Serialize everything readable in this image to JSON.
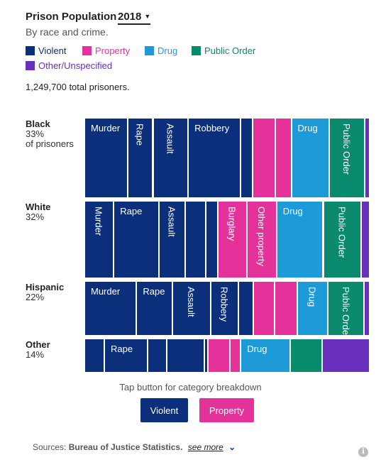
{
  "header": {
    "title": "Prison Population",
    "year": "2018",
    "subtitle": "By race and crime."
  },
  "legend": [
    {
      "label": "Violent",
      "color": "#0c2f7b"
    },
    {
      "label": "Property",
      "color": "#e5329b"
    },
    {
      "label": "Drug",
      "color": "#1f9ad9"
    },
    {
      "label": "Public Order",
      "color": "#098a6d"
    },
    {
      "label": "Other/Unspecified",
      "color": "#6a2fbd"
    }
  ],
  "total_text": "1,249,700 total prisoners.",
  "chart_data": {
    "type": "mosaic",
    "categories": [
      "Violent",
      "Property",
      "Drug",
      "Public Order",
      "Other/Unspecified"
    ],
    "colors": {
      "Violent": "#0c2f7b",
      "Property": "#e5329b",
      "Drug": "#1f9ad9",
      "Public Order": "#098a6d",
      "Other/Unspecified": "#6a2fbd"
    },
    "total": 1249700,
    "rows": [
      {
        "group": "Black",
        "pct_label": "33%",
        "sub": "of prisoners",
        "share": 0.33,
        "segments": [
          {
            "cat": "Violent",
            "label": "Murder",
            "share": 0.152,
            "orient": "h"
          },
          {
            "cat": "Violent",
            "label": "Rape",
            "share": 0.087,
            "orient": "v"
          },
          {
            "cat": "Violent",
            "label": "Assault",
            "share": 0.123,
            "orient": "v"
          },
          {
            "cat": "Violent",
            "label": "Robbery",
            "share": 0.185,
            "orient": "h"
          },
          {
            "cat": "Violent",
            "label": "",
            "share": 0.039,
            "orient": "h"
          },
          {
            "cat": "Property",
            "label": "",
            "share": 0.078,
            "orient": "h"
          },
          {
            "cat": "Property",
            "label": "",
            "share": 0.053,
            "orient": "h"
          },
          {
            "cat": "Drug",
            "label": "Drug",
            "share": 0.133,
            "orient": "h"
          },
          {
            "cat": "Public Order",
            "label": "Public Order",
            "share": 0.124,
            "orient": "v"
          },
          {
            "cat": "Other/Unspecified",
            "label": "",
            "share": 0.013,
            "orient": "h"
          }
        ]
      },
      {
        "group": "White",
        "pct_label": "32%",
        "sub": "",
        "share": 0.32,
        "segments": [
          {
            "cat": "Violent",
            "label": "Murder",
            "share": 0.103,
            "orient": "v"
          },
          {
            "cat": "Violent",
            "label": "Rape",
            "share": 0.162,
            "orient": "h"
          },
          {
            "cat": "Violent",
            "label": "Assault",
            "share": 0.091,
            "orient": "v"
          },
          {
            "cat": "Violent",
            "label": "",
            "share": 0.071,
            "orient": "h"
          },
          {
            "cat": "Violent",
            "label": "",
            "share": 0.039,
            "orient": "h"
          },
          {
            "cat": "Property",
            "label": "Burglary",
            "share": 0.103,
            "orient": "v"
          },
          {
            "cat": "Property",
            "label": "Other property",
            "share": 0.103,
            "orient": "v"
          },
          {
            "cat": "Drug",
            "label": "Drug",
            "share": 0.167,
            "orient": "h"
          },
          {
            "cat": "Public Order",
            "label": "Public Order",
            "share": 0.135,
            "orient": "v"
          },
          {
            "cat": "Other/Unspecified",
            "label": "",
            "share": 0.026,
            "orient": "h"
          }
        ]
      },
      {
        "group": "Hispanic",
        "pct_label": "22%",
        "sub": "",
        "share": 0.22,
        "segments": [
          {
            "cat": "Violent",
            "label": "Murder",
            "share": 0.187,
            "orient": "h"
          },
          {
            "cat": "Violent",
            "label": "Rape",
            "share": 0.128,
            "orient": "h"
          },
          {
            "cat": "Violent",
            "label": "Assault",
            "share": 0.135,
            "orient": "v"
          },
          {
            "cat": "Violent",
            "label": "Robbery",
            "share": 0.098,
            "orient": "v"
          },
          {
            "cat": "Violent",
            "label": "",
            "share": 0.049,
            "orient": "h"
          },
          {
            "cat": "Property",
            "label": "",
            "share": 0.074,
            "orient": "h"
          },
          {
            "cat": "Property",
            "label": "",
            "share": 0.078,
            "orient": "h"
          },
          {
            "cat": "Drug",
            "label": "Drug",
            "share": 0.108,
            "orient": "v"
          },
          {
            "cat": "Public Order",
            "label": "Public Order",
            "share": 0.128,
            "orient": "v"
          },
          {
            "cat": "Other/Unspecified",
            "label": "",
            "share": 0.015,
            "orient": "h"
          }
        ]
      },
      {
        "group": "Other",
        "pct_label": "14%",
        "sub": "",
        "share": 0.14,
        "segments": [
          {
            "cat": "Violent",
            "label": "",
            "share": 0.068,
            "orient": "h"
          },
          {
            "cat": "Violent",
            "label": "Rape",
            "share": 0.155,
            "orient": "h"
          },
          {
            "cat": "Violent",
            "label": "",
            "share": 0.066,
            "orient": "h"
          },
          {
            "cat": "Violent",
            "label": "",
            "share": 0.133,
            "orient": "h"
          },
          {
            "cat": "Violent",
            "label": "",
            "share": 0.008,
            "orient": "h"
          },
          {
            "cat": "Property",
            "label": "",
            "share": 0.076,
            "orient": "h"
          },
          {
            "cat": "Property",
            "label": "",
            "share": 0.034,
            "orient": "h"
          },
          {
            "cat": "Drug",
            "label": "Drug",
            "share": 0.177,
            "orient": "h"
          },
          {
            "cat": "Public Order",
            "label": "",
            "share": 0.113,
            "orient": "h"
          },
          {
            "cat": "Other/Unspecified",
            "label": "",
            "share": 0.17,
            "orient": "h"
          }
        ]
      }
    ]
  },
  "hint": "Tap button for category breakdown",
  "buttons": [
    {
      "label": "Violent",
      "color": "#0c2f7b"
    },
    {
      "label": "Property",
      "color": "#e5329b"
    }
  ],
  "sources": {
    "prefix": "Sources:",
    "source": "Bureau of Justice Statistics.",
    "more": "see more"
  }
}
